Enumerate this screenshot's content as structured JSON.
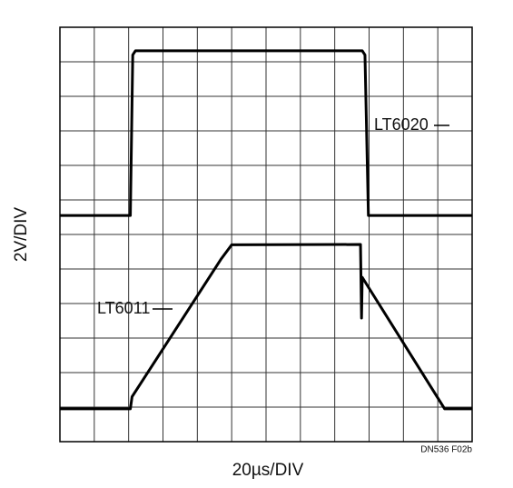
{
  "chart_data": {
    "type": "line",
    "x_label": "20µs/DIV",
    "y_label": "2V/DIV",
    "figure_id": "DN536 F02b",
    "xlim": [
      0,
      12
    ],
    "ylim": [
      0,
      12
    ],
    "xticks": [
      0,
      1,
      2,
      3,
      4,
      5,
      6,
      7,
      8,
      9,
      10,
      11,
      12
    ],
    "yticks": [
      0,
      1,
      2,
      3,
      4,
      5,
      6,
      7,
      8,
      9,
      10,
      11,
      12
    ],
    "grid": true,
    "series": [
      {
        "name": "LT6020",
        "color": "#000000",
        "x": [
          0,
          2.05,
          2.12,
          2.2,
          8.8,
          8.88,
          8.98,
          12
        ],
        "values": [
          6.55,
          6.55,
          11.2,
          11.32,
          11.32,
          11.2,
          6.55,
          6.55
        ]
      },
      {
        "name": "LT6011",
        "color": "#000000",
        "x": [
          0,
          2.05,
          2.1,
          4.7,
          5.0,
          8.75,
          8.78,
          8.8,
          11.2,
          12
        ],
        "values": [
          0.95,
          0.95,
          1.3,
          5.3,
          5.7,
          5.71,
          3.58,
          4.76,
          0.95,
          0.95
        ]
      }
    ]
  }
}
